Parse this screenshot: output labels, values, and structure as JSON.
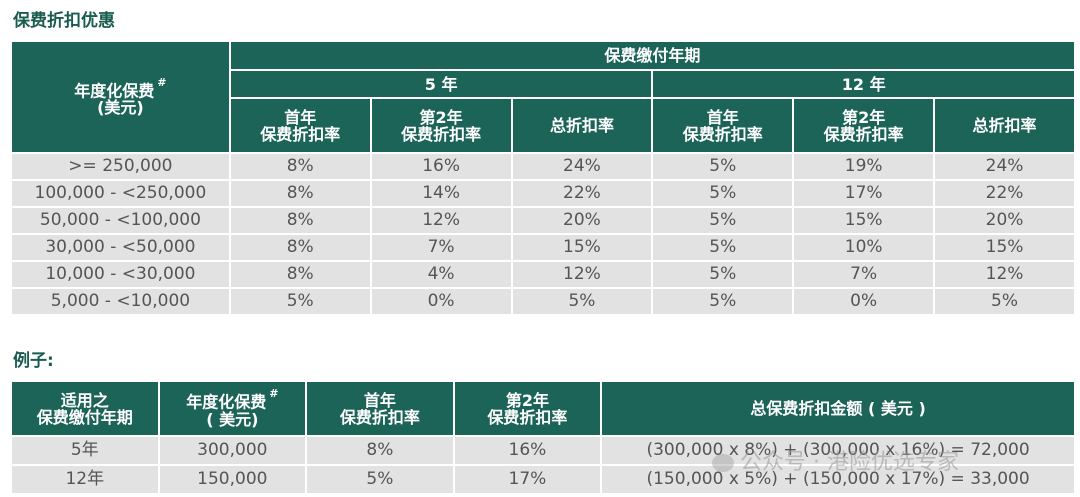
{
  "discount_section": {
    "title": "保费折扣优惠",
    "header": {
      "premium_col": "年度化保费",
      "premium_hash": "#",
      "premium_unit": "(美元)",
      "term_group": "保费缴付年期",
      "term_5": "5 年",
      "term_12": "12 年",
      "first_year_line1": "首年",
      "first_year_line2": "保费折扣率",
      "second_year_line1": "第2年",
      "second_year_line2": "保费折扣率",
      "total_rate": "总折扣率"
    },
    "rows": [
      {
        "range": ">= 250,000",
        "t5_first": "8%",
        "t5_second": "16%",
        "t5_total": "24%",
        "t12_first": "5%",
        "t12_second": "19%",
        "t12_total": "24%"
      },
      {
        "range": "100,000 - <250,000",
        "t5_first": "8%",
        "t5_second": "14%",
        "t5_total": "22%",
        "t12_first": "5%",
        "t12_second": "17%",
        "t12_total": "22%"
      },
      {
        "range": "50,000 - <100,000",
        "t5_first": "8%",
        "t5_second": "12%",
        "t5_total": "20%",
        "t12_first": "5%",
        "t12_second": "15%",
        "t12_total": "20%"
      },
      {
        "range": "30,000 - <50,000",
        "t5_first": "8%",
        "t5_second": "7%",
        "t5_total": "15%",
        "t12_first": "5%",
        "t12_second": "10%",
        "t12_total": "15%"
      },
      {
        "range": "10,000 - <30,000",
        "t5_first": "8%",
        "t5_second": "4%",
        "t5_total": "12%",
        "t12_first": "5%",
        "t12_second": "7%",
        "t12_total": "12%"
      },
      {
        "range": "5,000 - <10,000",
        "t5_first": "5%",
        "t5_second": "0%",
        "t5_total": "5%",
        "t12_first": "5%",
        "t12_second": "0%",
        "t12_total": "5%"
      }
    ]
  },
  "example_section": {
    "title": "例子:",
    "header": {
      "term_line1": "适用之",
      "term_line2": "保费缴付年期",
      "premium_line1": "年度化保费",
      "premium_hash": "#",
      "premium_line2": "( 美元)",
      "first_line1": "首年",
      "first_line2": "保费折扣率",
      "second_line1": "第2年",
      "second_line2": "保费折扣率",
      "total_amount": "总保费折扣金额 ( 美元 )"
    },
    "rows": [
      {
        "term": "5年",
        "premium": "300,000",
        "first": "8%",
        "second": "16%",
        "amount": "(300,000 x 8%) + (300,000 x 16%) = 72,000"
      },
      {
        "term": "12年",
        "premium": "150,000",
        "first": "5%",
        "second": "17%",
        "amount": "(150,000 x 5%) + (150,000 x 17%) = 33,000"
      }
    ]
  },
  "watermark": {
    "text": "公众号 · 港险优选专家"
  },
  "colors": {
    "header_bg": "#1c6358",
    "cell_bg": "#e2e2e2",
    "title": "#1a5c50"
  }
}
